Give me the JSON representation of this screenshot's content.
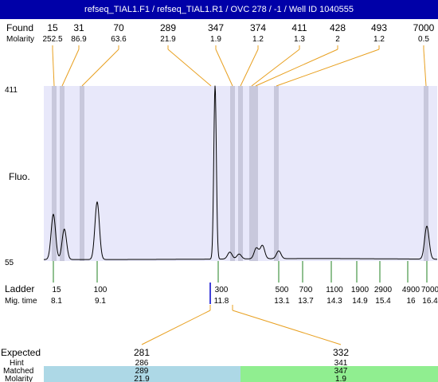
{
  "title": "refseq_TIAL1.F1 / refseq_TIAL1.R1 / OVC 278 / -1 / Well ID 1040555",
  "labels": {
    "found": "Found",
    "molarity": "Molarity",
    "fluo": "Fluo.",
    "ladder": "Ladder",
    "mig_time": "Mig. time",
    "expected": "Expected",
    "hint": "Hint",
    "matched": "Matched",
    "molarity_bottom": "Molarity"
  },
  "colors": {
    "title_bg": "#0000a8",
    "plot_bg": "#e8e8fa",
    "band": "#c8c8dc",
    "found_line": "#e8a020",
    "ladder_line": "#208020",
    "selected_marker": "#0000cc",
    "matched_1": "#add8e6",
    "matched_2": "#90ee90"
  },
  "chart_data": {
    "type": "line",
    "title": "",
    "xlabel": "",
    "ylabel": "Fluo.",
    "ylim": [
      55,
      411
    ],
    "y_ticks": [
      "411",
      "55"
    ],
    "found_peaks": [
      {
        "size": "15",
        "molarity": "252.5"
      },
      {
        "size": "31",
        "molarity": "86.9"
      },
      {
        "size": "70",
        "molarity": "63.6"
      },
      {
        "size": "289",
        "molarity": "21.9"
      },
      {
        "size": "347",
        "molarity": "1.9"
      },
      {
        "size": "374",
        "molarity": "1.2"
      },
      {
        "size": "411",
        "molarity": "1.3"
      },
      {
        "size": "428",
        "molarity": "2"
      },
      {
        "size": "493",
        "molarity": "1.2"
      },
      {
        "size": "7000",
        "molarity": "0.5"
      }
    ],
    "ladder": [
      {
        "size": "15",
        "mig_time": "8.1"
      },
      {
        "size": "100",
        "mig_time": "9.1"
      },
      {
        "size": "300",
        "mig_time": "11.8"
      },
      {
        "size": "500",
        "mig_time": "13.1"
      },
      {
        "size": "700",
        "mig_time": "13.7"
      },
      {
        "size": "1100",
        "mig_time": "14.3"
      },
      {
        "size": "1900",
        "mig_time": "14.9"
      },
      {
        "size": "2900",
        "mig_time": "15.4"
      },
      {
        "size": "4900",
        "mig_time": "16"
      },
      {
        "size": "7000",
        "mig_time": "16.4"
      }
    ],
    "expected": [
      {
        "size": "281",
        "hint": "286",
        "matched": "289",
        "molarity": "21.9"
      },
      {
        "size": "332",
        "hint": "341",
        "matched": "347",
        "molarity": "1.9"
      }
    ],
    "trace_peaks": [
      {
        "mig_time": 8.1,
        "height": 150
      },
      {
        "mig_time": 8.35,
        "height": 120
      },
      {
        "mig_time": 9.1,
        "height": 175
      },
      {
        "mig_time": 11.73,
        "height": 411
      },
      {
        "mig_time": 12.05,
        "height": 72
      },
      {
        "mig_time": 12.25,
        "height": 68
      },
      {
        "mig_time": 12.62,
        "height": 80
      },
      {
        "mig_time": 12.75,
        "height": 85
      },
      {
        "mig_time": 13.1,
        "height": 74
      },
      {
        "mig_time": 16.4,
        "height": 125
      }
    ]
  }
}
